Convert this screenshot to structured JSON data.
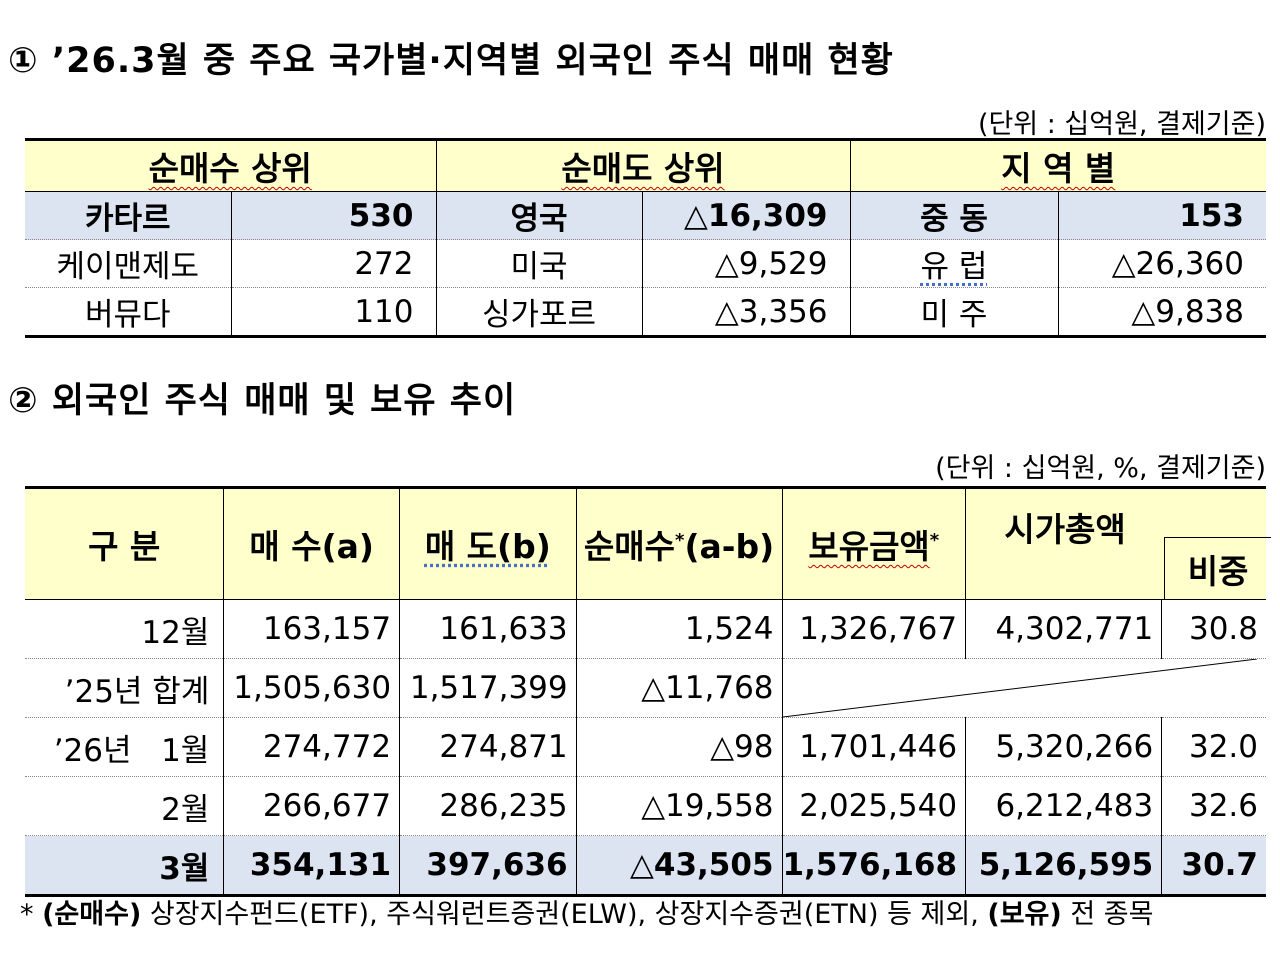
{
  "section1": {
    "title": "① ’26.3월 중 주요 국가별·지역별 외국인 주식 매매 현황",
    "unit": "(단위 : 십억원, 결제기준)",
    "headers": [
      "순매수 상위",
      "순매도 상위",
      "지 역 별"
    ],
    "rows": [
      {
        "buy_name": "카타르",
        "buy_value": "530",
        "sell_name": "영국",
        "sell_value": "△16,309",
        "region_name": "중 동",
        "region_value": "153"
      },
      {
        "buy_name": "케이맨제도",
        "buy_value": "272",
        "sell_name": "미국",
        "sell_value": "△9,529",
        "region_name": "유 럽",
        "region_value": "△26,360"
      },
      {
        "buy_name": "버뮤다",
        "buy_value": "110",
        "sell_name": "싱가포르",
        "sell_value": "△3,356",
        "region_name": "미 주",
        "region_value": "△9,838"
      }
    ]
  },
  "section2": {
    "title": "② 외국인 주식 매매 및 보유 추이",
    "unit": "(단위 : 십억원, %, 결제기준)",
    "headers": {
      "category": "구 분",
      "buy": "매 수(a)",
      "sell": "매 도(b)",
      "net_buy": "순매수",
      "net_buy_star": "*",
      "net_buy_formula": "(a-b)",
      "holding": "보유금액",
      "holding_star": "*",
      "market_cap": "시가총액",
      "ratio": "비중"
    },
    "rows": [
      {
        "label": "12월",
        "buy": "163,157",
        "sell": "161,633",
        "net": "1,524",
        "holding": "1,326,767",
        "market_cap": "4,302,771",
        "ratio": "30.8"
      },
      {
        "label": "’25년 합계",
        "buy": "1,505,630",
        "sell": "1,517,399",
        "net": "△11,768",
        "holding": "",
        "market_cap": "",
        "ratio": ""
      },
      {
        "label": "’26년   1월",
        "buy": "274,772",
        "sell": "274,871",
        "net": "△98",
        "holding": "1,701,446",
        "market_cap": "5,320,266",
        "ratio": "32.0"
      },
      {
        "label": "2월",
        "buy": "266,677",
        "sell": "286,235",
        "net": "△19,558",
        "holding": "2,025,540",
        "market_cap": "6,212,483",
        "ratio": "32.6"
      },
      {
        "label": "3월",
        "buy": "354,131",
        "sell": "397,636",
        "net": "△43,505",
        "holding": "1,576,168",
        "market_cap": "5,126,595",
        "ratio": "30.7"
      }
    ]
  },
  "footnote": {
    "star": "* ",
    "bold1": "(순매수)",
    "text1": " 상장지수펀드(ETF), 주식워런트증권(ELW), 상장지수증권(ETN) 등 제외, ",
    "bold2": "(보유)",
    "text2": " 전 종목"
  }
}
